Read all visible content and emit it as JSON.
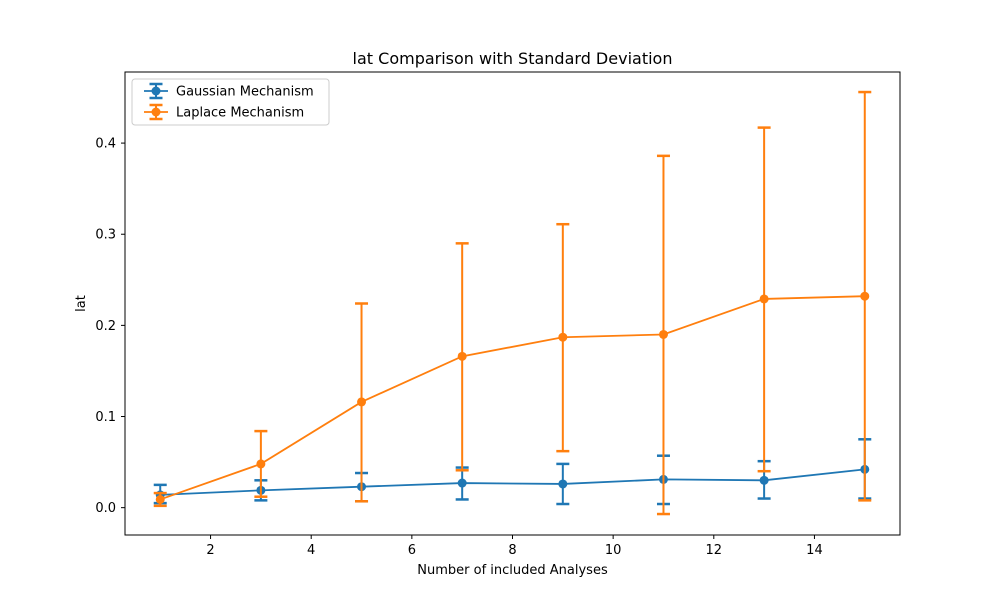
{
  "chart_data": {
    "type": "line",
    "title": "lat Comparison with Standard Deviation",
    "xlabel": "Number of included Analyses",
    "ylabel": "lat",
    "x": [
      1,
      3,
      5,
      7,
      9,
      11,
      13,
      15
    ],
    "xlim": [
      0.3,
      15.7
    ],
    "ylim": [
      -0.03,
      0.478
    ],
    "xticks": [
      2,
      4,
      6,
      8,
      10,
      12,
      14
    ],
    "yticks": [
      0.0,
      0.1,
      0.2,
      0.3,
      0.4
    ],
    "xtick_labels": [
      "2",
      "4",
      "6",
      "8",
      "10",
      "12",
      "14"
    ],
    "ytick_labels": [
      "0.0",
      "0.1",
      "0.2",
      "0.3",
      "0.4"
    ],
    "grid": false,
    "legend_position": "top-left",
    "series": [
      {
        "name": "Gaussian Mechanism",
        "color": "#1f77b4",
        "values": [
          0.014,
          0.019,
          0.023,
          0.027,
          0.026,
          0.031,
          0.03,
          0.042
        ],
        "err_low": [
          0.005,
          0.008,
          0.007,
          0.009,
          0.004,
          0.004,
          0.01,
          0.01
        ],
        "err_high": [
          0.025,
          0.03,
          0.038,
          0.044,
          0.048,
          0.057,
          0.051,
          0.075
        ]
      },
      {
        "name": "Laplace Mechanism",
        "color": "#ff7f0e",
        "values": [
          0.009,
          0.048,
          0.116,
          0.166,
          0.187,
          0.19,
          0.229,
          0.232
        ],
        "err_low": [
          0.002,
          0.012,
          0.007,
          0.041,
          0.062,
          -0.007,
          0.04,
          0.008
        ],
        "err_high": [
          0.016,
          0.084,
          0.224,
          0.29,
          0.311,
          0.386,
          0.417,
          0.456
        ]
      }
    ]
  }
}
